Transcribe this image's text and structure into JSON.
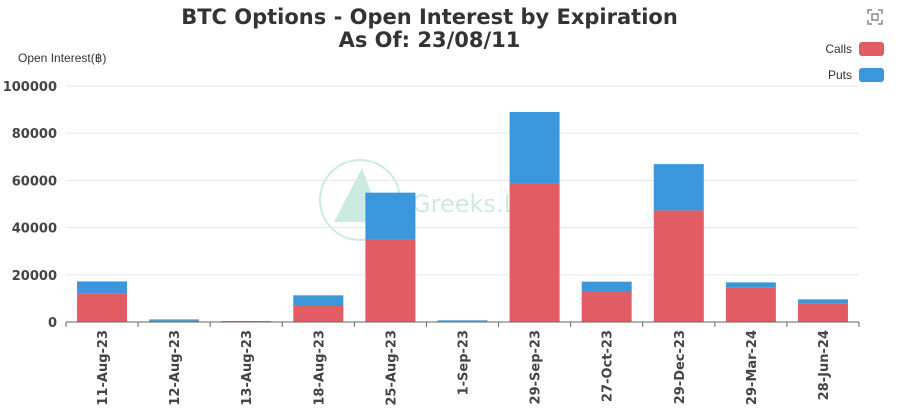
{
  "title_line1": "BTC Options - Open Interest by Expiration",
  "title_line2": "As Of: 23/08/11",
  "watermark_text": "Greeks.L",
  "colors": {
    "calls": "#e25c63",
    "puts": "#3a97dc"
  },
  "chart_data": {
    "type": "bar",
    "stacked": true,
    "ylabel": "Open Interest(฿)",
    "ylim": [
      0,
      100000
    ],
    "yticks": [
      "0",
      "20000",
      "40000",
      "60000",
      "80000",
      "100000"
    ],
    "ytick_values": [
      0,
      20000,
      40000,
      60000,
      80000,
      100000
    ],
    "grid": true,
    "legend_position": "top-right",
    "categories": [
      "11-Aug-23",
      "12-Aug-23",
      "13-Aug-23",
      "18-Aug-23",
      "25-Aug-23",
      "1-Sep-23",
      "29-Sep-23",
      "27-Oct-23",
      "29-Dec-23",
      "29-Mar-24",
      "28-Jun-24"
    ],
    "series": [
      {
        "name": "Calls",
        "values": [
          12000,
          500,
          200,
          7200,
          35000,
          300,
          58500,
          12700,
          47300,
          14700,
          8000
        ]
      },
      {
        "name": "Puts",
        "values": [
          5200,
          600,
          200,
          4100,
          19800,
          400,
          30500,
          4400,
          19600,
          2100,
          1600
        ]
      }
    ]
  }
}
